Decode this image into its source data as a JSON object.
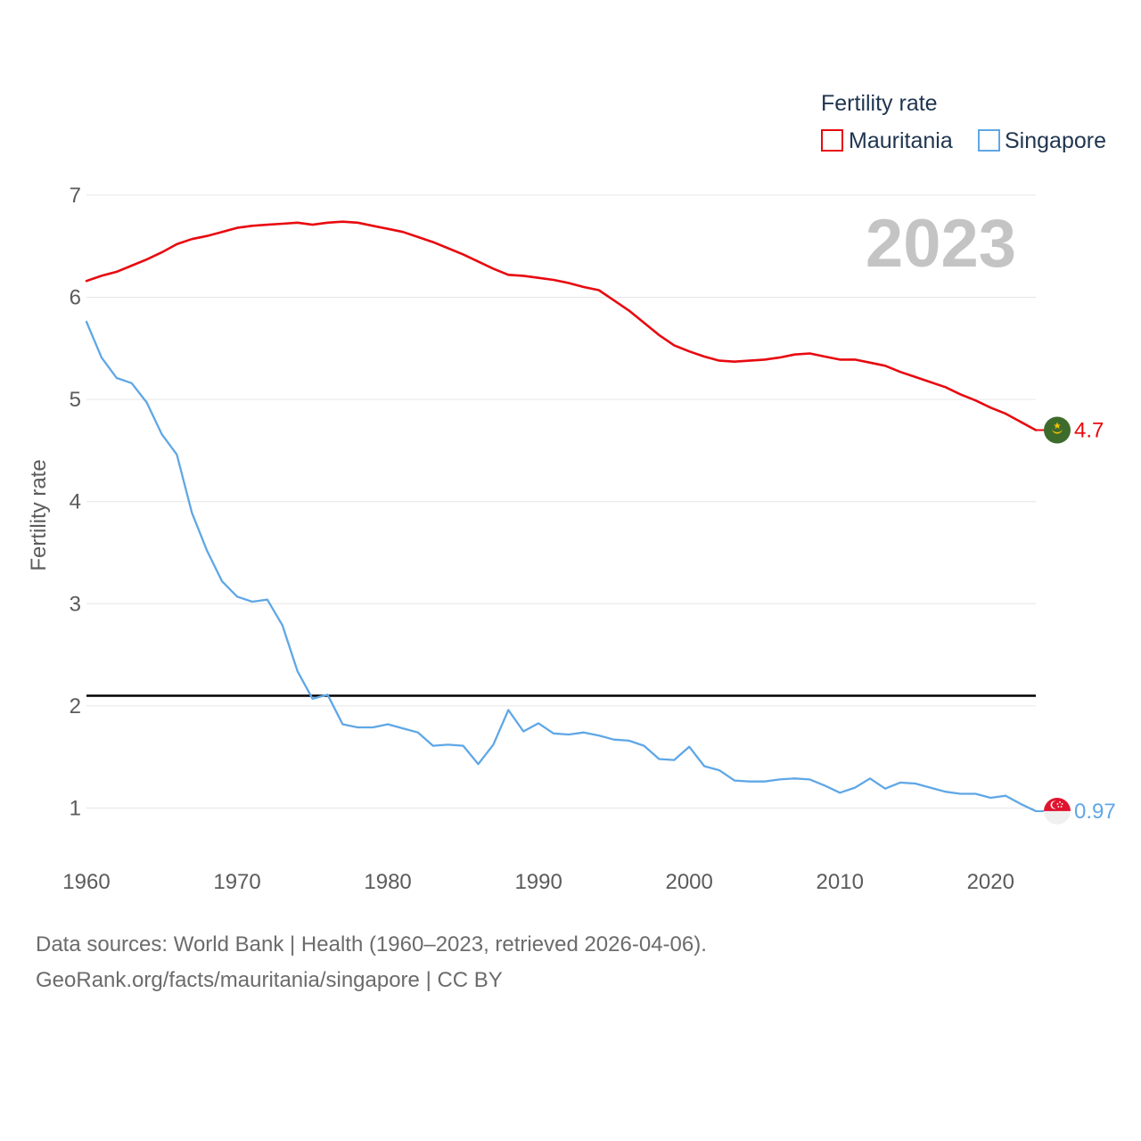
{
  "chart_data": {
    "type": "line",
    "title": "Fertility rate",
    "ylabel": "Fertility rate",
    "xlabel": "",
    "year_label": "2023",
    "xlim": [
      1960,
      2023
    ],
    "ylim": [
      0.45,
      7.2
    ],
    "x_ticks": [
      1960,
      1970,
      1980,
      1990,
      2000,
      2010,
      2020
    ],
    "y_ticks": [
      1,
      2,
      3,
      4,
      5,
      6,
      7
    ],
    "reference_line": 2.1,
    "x": [
      1960,
      1961,
      1962,
      1963,
      1964,
      1965,
      1966,
      1967,
      1968,
      1969,
      1970,
      1971,
      1972,
      1973,
      1974,
      1975,
      1976,
      1977,
      1978,
      1979,
      1980,
      1981,
      1982,
      1983,
      1984,
      1985,
      1986,
      1987,
      1988,
      1989,
      1990,
      1991,
      1992,
      1993,
      1994,
      1995,
      1996,
      1997,
      1998,
      1999,
      2000,
      2001,
      2002,
      2003,
      2004,
      2005,
      2006,
      2007,
      2008,
      2009,
      2010,
      2011,
      2012,
      2013,
      2014,
      2015,
      2016,
      2017,
      2018,
      2019,
      2020,
      2021,
      2022,
      2023
    ],
    "series": [
      {
        "name": "Mauritania",
        "color": "#e8090f",
        "end_label": "4.7",
        "flag": "mauritania",
        "values": [
          6.16,
          6.21,
          6.25,
          6.31,
          6.37,
          6.44,
          6.52,
          6.57,
          6.6,
          6.64,
          6.68,
          6.7,
          6.71,
          6.72,
          6.73,
          6.71,
          6.73,
          6.74,
          6.73,
          6.7,
          6.67,
          6.64,
          6.59,
          6.54,
          6.48,
          6.42,
          6.35,
          6.28,
          6.22,
          6.21,
          6.19,
          6.17,
          6.14,
          6.1,
          6.07,
          5.97,
          5.87,
          5.75,
          5.63,
          5.53,
          5.47,
          5.42,
          5.38,
          5.37,
          5.38,
          5.39,
          5.41,
          5.44,
          5.45,
          5.42,
          5.39,
          5.39,
          5.36,
          5.33,
          5.27,
          5.22,
          5.17,
          5.12,
          5.05,
          4.99,
          4.92,
          4.86,
          4.78,
          4.7
        ]
      },
      {
        "name": "Singapore",
        "color": "#5fa7e6",
        "end_label": "0.97",
        "flag": "singapore",
        "values": [
          5.76,
          5.41,
          5.21,
          5.16,
          4.97,
          4.66,
          4.46,
          3.89,
          3.52,
          3.22,
          3.07,
          3.02,
          3.04,
          2.79,
          2.34,
          2.07,
          2.11,
          1.82,
          1.79,
          1.79,
          1.82,
          1.78,
          1.74,
          1.61,
          1.62,
          1.61,
          1.43,
          1.62,
          1.96,
          1.75,
          1.83,
          1.73,
          1.72,
          1.74,
          1.71,
          1.67,
          1.66,
          1.61,
          1.48,
          1.47,
          1.6,
          1.41,
          1.37,
          1.27,
          1.26,
          1.26,
          1.28,
          1.29,
          1.28,
          1.22,
          1.15,
          1.2,
          1.29,
          1.19,
          1.25,
          1.24,
          1.2,
          1.16,
          1.14,
          1.14,
          1.1,
          1.12,
          1.04,
          0.97
        ]
      }
    ],
    "legend_position": "top-right"
  },
  "footer": {
    "line1": "Data sources: World Bank | Health (1960–2023, retrieved 2026-04-06).",
    "line2": "GeoRank.org/facts/mauritania/singapore | CC BY"
  }
}
